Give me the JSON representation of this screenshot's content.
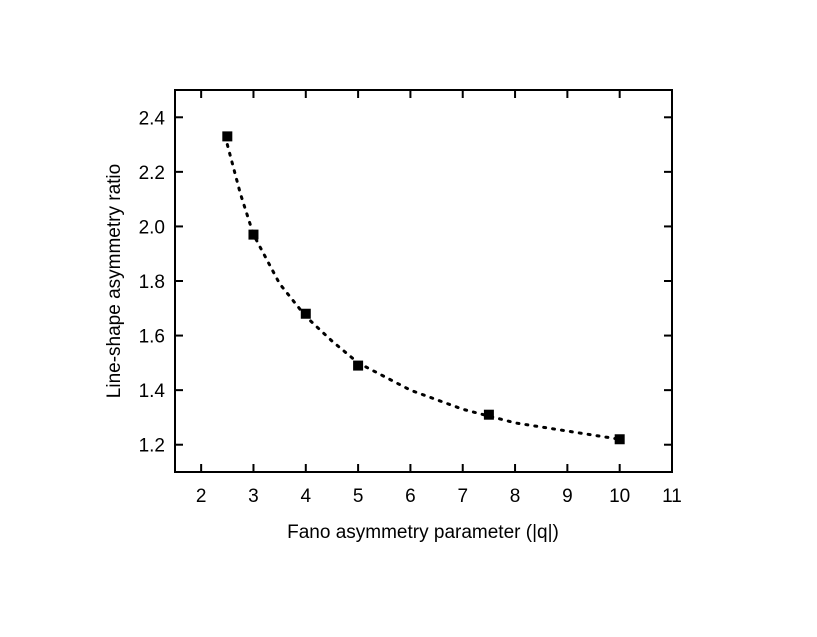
{
  "chart_data": {
    "type": "scatter",
    "x_label": "Fano asymmetry parameter (|q|)",
    "y_label": "Line-shape asymmetry ratio",
    "x": [
      2.5,
      3,
      4,
      5,
      7.5,
      10
    ],
    "values": [
      2.33,
      1.97,
      1.68,
      1.49,
      1.31,
      1.22
    ],
    "color": "#000000",
    "fit": {
      "x": [
        2.5,
        2.75,
        3,
        3.5,
        4,
        4.5,
        5,
        6,
        7,
        8,
        9,
        10
      ],
      "values": [
        2.3,
        2.12,
        1.97,
        1.79,
        1.67,
        1.58,
        1.5,
        1.4,
        1.33,
        1.28,
        1.25,
        1.22
      ]
    },
    "xlim": [
      1.5,
      11
    ],
    "xticks": [
      2,
      3,
      4,
      5,
      6,
      7,
      8,
      9,
      10,
      11
    ],
    "ylim": [
      1.1,
      2.5
    ],
    "yticks": [
      1.2,
      1.4,
      1.6,
      1.8,
      {
        "value": 2,
        "label": "2.0"
      },
      2.2,
      2.4
    ]
  }
}
